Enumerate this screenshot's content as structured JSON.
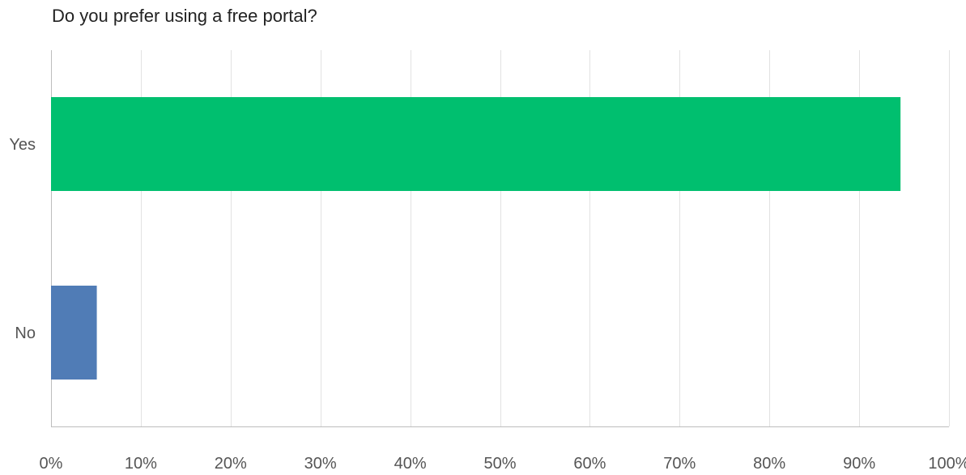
{
  "chart_data": {
    "type": "bar",
    "orientation": "horizontal",
    "title": "Do you prefer using a free portal?",
    "categories": [
      "Yes",
      "No"
    ],
    "values": [
      94.6,
      5.1
    ],
    "bar_colors": [
      "#00bf6f",
      "#507cb6"
    ],
    "xlim": [
      0,
      100
    ],
    "x_ticks": [
      0,
      10,
      20,
      30,
      40,
      50,
      60,
      70,
      80,
      90,
      100
    ],
    "x_tick_labels": [
      "0%",
      "10%",
      "20%",
      "30%",
      "40%",
      "50%",
      "60%",
      "70%",
      "80%",
      "90%",
      "100%"
    ],
    "grid": true,
    "gridline_color": "#e2e2e2"
  }
}
